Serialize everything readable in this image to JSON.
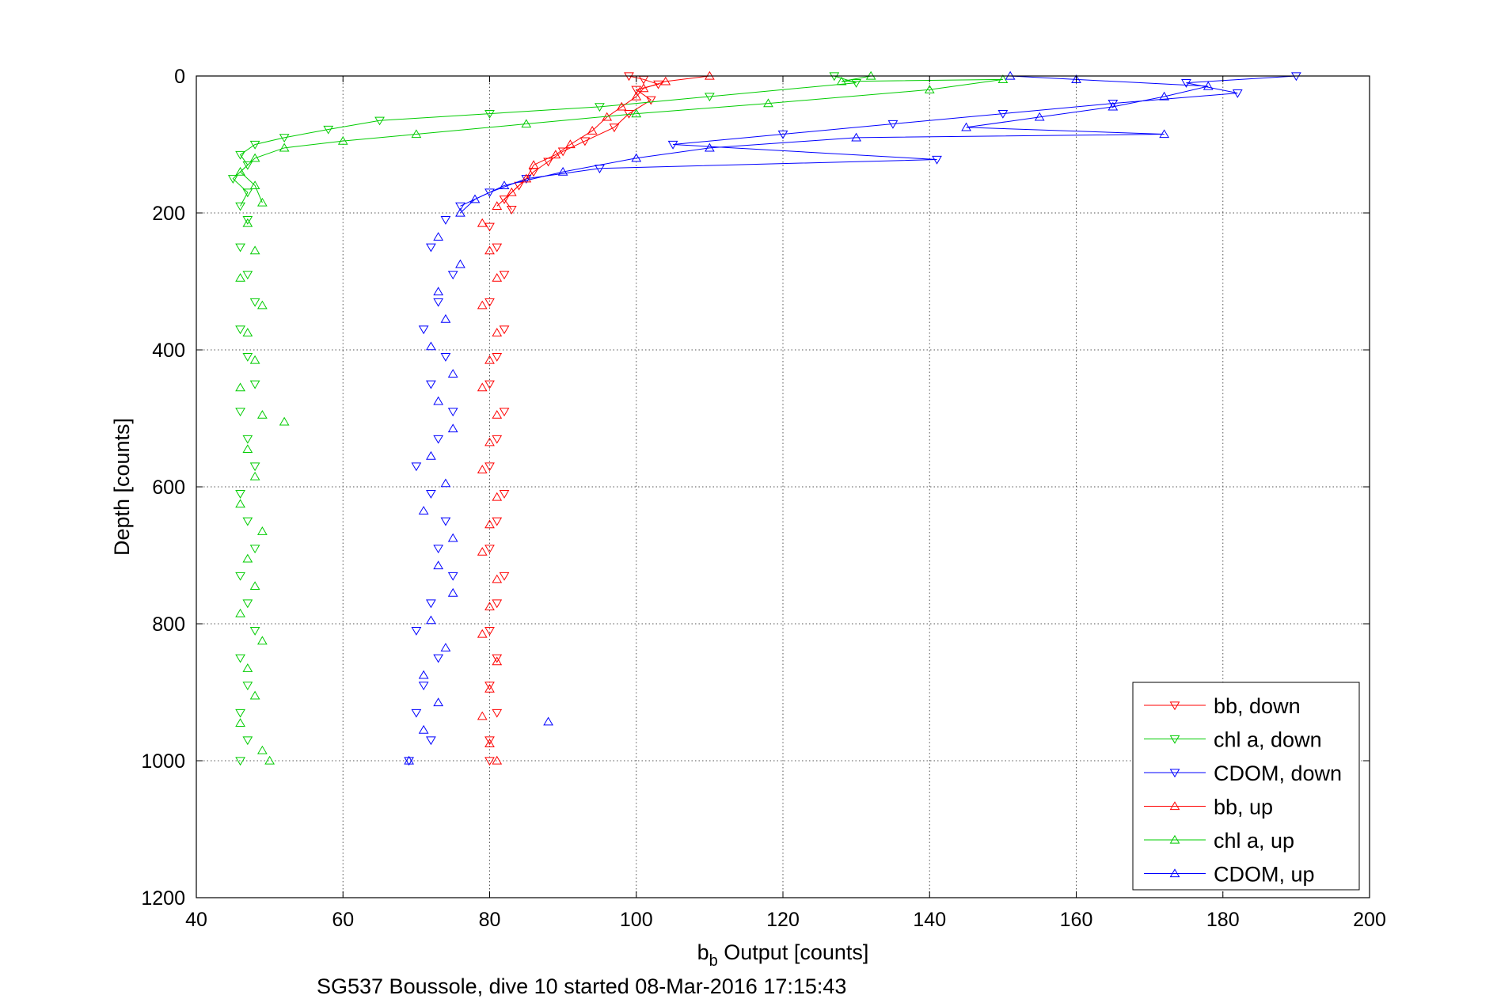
{
  "chart_data": {
    "type": "scatter",
    "xlabel_main": "b",
    "xlabel_sub": "b",
    "xlabel_rest": " Output [counts]",
    "ylabel": "Depth [counts]",
    "caption": "SG537 Boussole, dive 10 started 08-Mar-2016 17:15:43",
    "xlim": [
      40,
      200
    ],
    "ylim": [
      0,
      1200
    ],
    "y_reversed": true,
    "grid": true,
    "legend_position": "bottom-right",
    "x_ticks": [
      "40",
      "60",
      "80",
      "100",
      "120",
      "140",
      "160",
      "180",
      "200"
    ],
    "y_ticks": [
      "0",
      "200",
      "400",
      "600",
      "800",
      "1000",
      "1200"
    ],
    "series": [
      {
        "name": "bb, down",
        "color": "#ff0000",
        "marker": "triangle-down",
        "points": [
          [
            99,
            0
          ],
          [
            101,
            5
          ],
          [
            103,
            12
          ],
          [
            100,
            20
          ],
          [
            102,
            35
          ],
          [
            99,
            55
          ],
          [
            97,
            75
          ],
          [
            93,
            95
          ],
          [
            90,
            110
          ],
          [
            88,
            125
          ],
          [
            86,
            140
          ],
          [
            84,
            160
          ],
          [
            82,
            180
          ],
          [
            83,
            195
          ],
          [
            80,
            220
          ],
          [
            81,
            250
          ],
          [
            82,
            290
          ],
          [
            80,
            330
          ],
          [
            82,
            370
          ],
          [
            81,
            410
          ],
          [
            80,
            450
          ],
          [
            82,
            490
          ],
          [
            81,
            530
          ],
          [
            80,
            570
          ],
          [
            82,
            610
          ],
          [
            81,
            650
          ],
          [
            80,
            690
          ],
          [
            82,
            730
          ],
          [
            81,
            770
          ],
          [
            80,
            810
          ],
          [
            81,
            850
          ],
          [
            80,
            890
          ],
          [
            81,
            930
          ],
          [
            80,
            970
          ],
          [
            80,
            1000
          ]
        ]
      },
      {
        "name": "chl a, down",
        "color": "#00cc00",
        "marker": "triangle-down",
        "points": [
          [
            127,
            0
          ],
          [
            130,
            10
          ],
          [
            110,
            30
          ],
          [
            95,
            45
          ],
          [
            80,
            55
          ],
          [
            65,
            65
          ],
          [
            58,
            78
          ],
          [
            52,
            90
          ],
          [
            48,
            100
          ],
          [
            46,
            115
          ],
          [
            47,
            130
          ],
          [
            45,
            150
          ],
          [
            47,
            170
          ],
          [
            46,
            190
          ],
          [
            47,
            210
          ],
          [
            46,
            250
          ],
          [
            47,
            290
          ],
          [
            48,
            330
          ],
          [
            46,
            370
          ],
          [
            47,
            410
          ],
          [
            48,
            450
          ],
          [
            46,
            490
          ],
          [
            47,
            530
          ],
          [
            48,
            570
          ],
          [
            46,
            610
          ],
          [
            47,
            650
          ],
          [
            48,
            690
          ],
          [
            46,
            730
          ],
          [
            47,
            770
          ],
          [
            48,
            810
          ],
          [
            46,
            850
          ],
          [
            47,
            890
          ],
          [
            46,
            930
          ],
          [
            47,
            970
          ],
          [
            46,
            1000
          ]
        ]
      },
      {
        "name": "CDOM, down",
        "color": "#0000ff",
        "marker": "triangle-down",
        "points": [
          [
            190,
            0
          ],
          [
            175,
            10
          ],
          [
            182,
            25
          ],
          [
            165,
            40
          ],
          [
            150,
            55
          ],
          [
            135,
            70
          ],
          [
            120,
            85
          ],
          [
            105,
            100
          ],
          [
            141,
            122
          ],
          [
            95,
            135
          ],
          [
            85,
            150
          ],
          [
            80,
            170
          ],
          [
            76,
            190
          ],
          [
            74,
            210
          ],
          [
            72,
            250
          ],
          [
            75,
            290
          ],
          [
            73,
            330
          ],
          [
            71,
            370
          ],
          [
            74,
            410
          ],
          [
            72,
            450
          ],
          [
            75,
            490
          ],
          [
            73,
            530
          ],
          [
            70,
            570
          ],
          [
            72,
            610
          ],
          [
            74,
            650
          ],
          [
            73,
            690
          ],
          [
            75,
            730
          ],
          [
            72,
            770
          ],
          [
            70,
            810
          ],
          [
            73,
            850
          ],
          [
            71,
            890
          ],
          [
            70,
            930
          ],
          [
            72,
            970
          ],
          [
            69,
            1000
          ]
        ]
      },
      {
        "name": "bb, up",
        "color": "#ff0000",
        "marker": "triangle-up",
        "points": [
          [
            110,
            0
          ],
          [
            104,
            8
          ],
          [
            101,
            18
          ],
          [
            100,
            30
          ],
          [
            98,
            45
          ],
          [
            96,
            60
          ],
          [
            94,
            80
          ],
          [
            91,
            100
          ],
          [
            89,
            115
          ],
          [
            86,
            130
          ],
          [
            85,
            150
          ],
          [
            83,
            170
          ],
          [
            81,
            190
          ],
          [
            79,
            215
          ],
          [
            80,
            255
          ],
          [
            81,
            295
          ],
          [
            79,
            335
          ],
          [
            81,
            375
          ],
          [
            80,
            415
          ],
          [
            79,
            455
          ],
          [
            81,
            495
          ],
          [
            80,
            535
          ],
          [
            79,
            575
          ],
          [
            81,
            615
          ],
          [
            80,
            655
          ],
          [
            79,
            695
          ],
          [
            81,
            735
          ],
          [
            80,
            775
          ],
          [
            79,
            815
          ],
          [
            81,
            855
          ],
          [
            80,
            895
          ],
          [
            79,
            935
          ],
          [
            80,
            975
          ],
          [
            81,
            1000
          ]
        ]
      },
      {
        "name": "chl a, up",
        "color": "#00cc00",
        "marker": "triangle-up",
        "points": [
          [
            132,
            0
          ],
          [
            128,
            8
          ],
          [
            150,
            5
          ],
          [
            140,
            20
          ],
          [
            118,
            40
          ],
          [
            100,
            55
          ],
          [
            85,
            70
          ],
          [
            70,
            85
          ],
          [
            60,
            95
          ],
          [
            52,
            105
          ],
          [
            48,
            120
          ],
          [
            46,
            140
          ],
          [
            48,
            160
          ],
          [
            49,
            185
          ],
          [
            47,
            215
          ],
          [
            48,
            255
          ],
          [
            46,
            295
          ],
          [
            49,
            335
          ],
          [
            47,
            375
          ],
          [
            48,
            415
          ],
          [
            46,
            455
          ],
          [
            49,
            495
          ],
          [
            52,
            505
          ],
          [
            47,
            545
          ],
          [
            48,
            585
          ],
          [
            46,
            625
          ],
          [
            49,
            665
          ],
          [
            47,
            705
          ],
          [
            48,
            745
          ],
          [
            46,
            785
          ],
          [
            49,
            825
          ],
          [
            47,
            865
          ],
          [
            48,
            905
          ],
          [
            46,
            945
          ],
          [
            49,
            985
          ],
          [
            50,
            1000
          ]
        ]
      },
      {
        "name": "CDOM, up",
        "color": "#0000ff",
        "marker": "triangle-up",
        "points": [
          [
            151,
            0
          ],
          [
            160,
            5
          ],
          [
            178,
            15
          ],
          [
            172,
            30
          ],
          [
            165,
            45
          ],
          [
            155,
            60
          ],
          [
            145,
            75
          ],
          [
            172,
            85
          ],
          [
            130,
            90
          ],
          [
            110,
            105
          ],
          [
            100,
            120
          ],
          [
            90,
            140
          ],
          [
            82,
            160
          ],
          [
            78,
            180
          ],
          [
            76,
            200
          ],
          [
            73,
            235
          ],
          [
            76,
            275
          ],
          [
            73,
            315
          ],
          [
            74,
            355
          ],
          [
            72,
            395
          ],
          [
            75,
            435
          ],
          [
            73,
            475
          ],
          [
            75,
            515
          ],
          [
            72,
            555
          ],
          [
            74,
            595
          ],
          [
            71,
            635
          ],
          [
            75,
            675
          ],
          [
            73,
            715
          ],
          [
            75,
            755
          ],
          [
            72,
            795
          ],
          [
            74,
            835
          ],
          [
            71,
            875
          ],
          [
            73,
            915
          ],
          [
            88,
            943
          ],
          [
            71,
            955
          ],
          [
            69,
            1000
          ]
        ]
      }
    ]
  }
}
